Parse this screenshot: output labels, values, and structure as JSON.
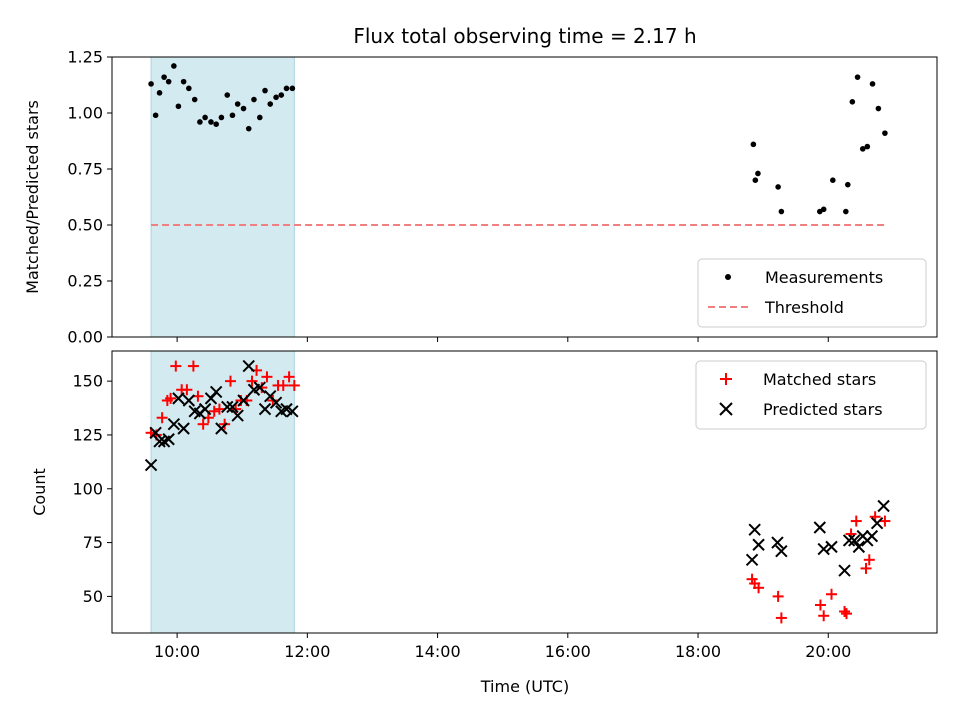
{
  "chart_data": [
    {
      "type": "scatter",
      "panel": "top",
      "title": "Flux total observing time = 2.17 h",
      "ylabel": "Matched/Predicted stars",
      "xlabel": "",
      "ylim": [
        0,
        1.25
      ],
      "yticks": [
        "0.00",
        "0.25",
        "0.50",
        "0.75",
        "1.00",
        "1.25"
      ],
      "ytick_values": [
        0,
        0.25,
        0.5,
        0.75,
        1.0,
        1.25
      ],
      "xlim_hours": [
        9.0,
        21.67
      ],
      "shaded_interval_hours": [
        9.6,
        11.8
      ],
      "shade_color": "#d3eaf0",
      "legend_position": "lower-right",
      "series": [
        {
          "name": "Measurements",
          "marker": "dot",
          "color": "#000000",
          "x_hours": [
            9.6,
            9.67,
            9.73,
            9.8,
            9.87,
            9.95,
            10.02,
            10.1,
            10.18,
            10.27,
            10.35,
            10.43,
            10.52,
            10.6,
            10.68,
            10.77,
            10.85,
            10.93,
            11.02,
            11.1,
            11.18,
            11.27,
            11.35,
            11.43,
            11.52,
            11.6,
            11.68,
            11.77,
            18.85,
            18.88,
            18.92,
            19.23,
            19.28,
            19.87,
            19.93,
            20.07,
            20.27,
            20.3,
            20.37,
            20.45,
            20.53,
            20.6,
            20.68,
            20.77,
            20.87
          ],
          "y": [
            1.13,
            0.99,
            1.09,
            1.16,
            1.14,
            1.21,
            1.03,
            1.14,
            1.11,
            1.06,
            0.96,
            0.98,
            0.96,
            0.95,
            0.98,
            1.08,
            0.99,
            1.04,
            1.02,
            0.93,
            1.06,
            0.98,
            1.1,
            1.04,
            1.07,
            1.08,
            1.11,
            1.11,
            0.86,
            0.7,
            0.73,
            0.67,
            0.56,
            0.56,
            0.57,
            0.7,
            0.56,
            0.68,
            1.05,
            1.16,
            0.84,
            0.85,
            1.13,
            1.02,
            0.91
          ]
        },
        {
          "name": "Threshold",
          "line_style": "dashed",
          "color": "#f08080",
          "x_hours": [
            9.6,
            20.87
          ],
          "y": [
            0.5,
            0.5
          ]
        }
      ]
    },
    {
      "type": "scatter",
      "panel": "bottom",
      "xlabel": "Time (UTC)",
      "ylabel": "Count",
      "ylim": [
        33,
        164
      ],
      "yticks": [
        "50",
        "75",
        "100",
        "125",
        "150"
      ],
      "ytick_values": [
        50,
        75,
        100,
        125,
        150
      ],
      "xlim_hours": [
        9.0,
        21.67
      ],
      "xticks": [
        "10:00",
        "12:00",
        "14:00",
        "16:00",
        "18:00",
        "20:00"
      ],
      "xtick_hours": [
        10,
        12,
        14,
        16,
        18,
        20
      ],
      "shaded_interval_hours": [
        9.6,
        11.8
      ],
      "shade_color": "#d3eaf0",
      "legend_position": "upper-right",
      "series": [
        {
          "name": "Matched stars",
          "marker": "plus",
          "color": "#ff0000",
          "x_hours": [
            9.6,
            9.68,
            9.77,
            9.85,
            9.9,
            9.98,
            10.07,
            10.15,
            10.25,
            10.32,
            10.4,
            10.48,
            10.57,
            10.65,
            10.73,
            10.82,
            10.9,
            10.98,
            11.07,
            11.15,
            11.22,
            11.3,
            11.38,
            11.47,
            11.55,
            11.63,
            11.72,
            11.8,
            18.83,
            18.87,
            18.93,
            19.23,
            19.28,
            19.88,
            19.93,
            20.05,
            20.25,
            20.28,
            20.35,
            20.43,
            20.58,
            20.63,
            20.72,
            20.87
          ],
          "y": [
            126,
            125,
            133,
            141,
            142,
            157,
            146,
            146,
            157,
            143,
            130,
            133,
            136,
            137,
            130,
            150,
            137,
            141,
            141,
            150,
            155,
            147,
            152,
            141,
            148,
            148,
            152,
            148,
            58,
            56,
            54,
            50,
            40,
            46,
            41,
            51,
            43,
            42,
            79,
            85,
            63,
            67,
            87,
            85
          ]
        },
        {
          "name": "Predicted stars",
          "marker": "x",
          "color": "#000000",
          "x_hours": [
            9.6,
            9.67,
            9.73,
            9.8,
            9.87,
            9.95,
            10.02,
            10.1,
            10.18,
            10.27,
            10.35,
            10.43,
            10.52,
            10.6,
            10.68,
            10.77,
            10.85,
            10.93,
            11.02,
            11.1,
            11.18,
            11.27,
            11.35,
            11.43,
            11.52,
            11.6,
            11.68,
            11.77,
            18.83,
            18.87,
            18.93,
            19.22,
            19.28,
            19.87,
            19.93,
            20.05,
            20.25,
            20.32,
            20.4,
            20.47,
            20.53,
            20.6,
            20.67,
            20.75,
            20.85
          ],
          "y": [
            111,
            126,
            122,
            122,
            123,
            130,
            142,
            128,
            141,
            136,
            135,
            137,
            142,
            145,
            128,
            138,
            138,
            134,
            141,
            157,
            146,
            147,
            137,
            143,
            140,
            136,
            137,
            136,
            67,
            81,
            74,
            75,
            71,
            82,
            72,
            73,
            62,
            76,
            76,
            73,
            78,
            76,
            78,
            84,
            92
          ]
        }
      ]
    }
  ]
}
